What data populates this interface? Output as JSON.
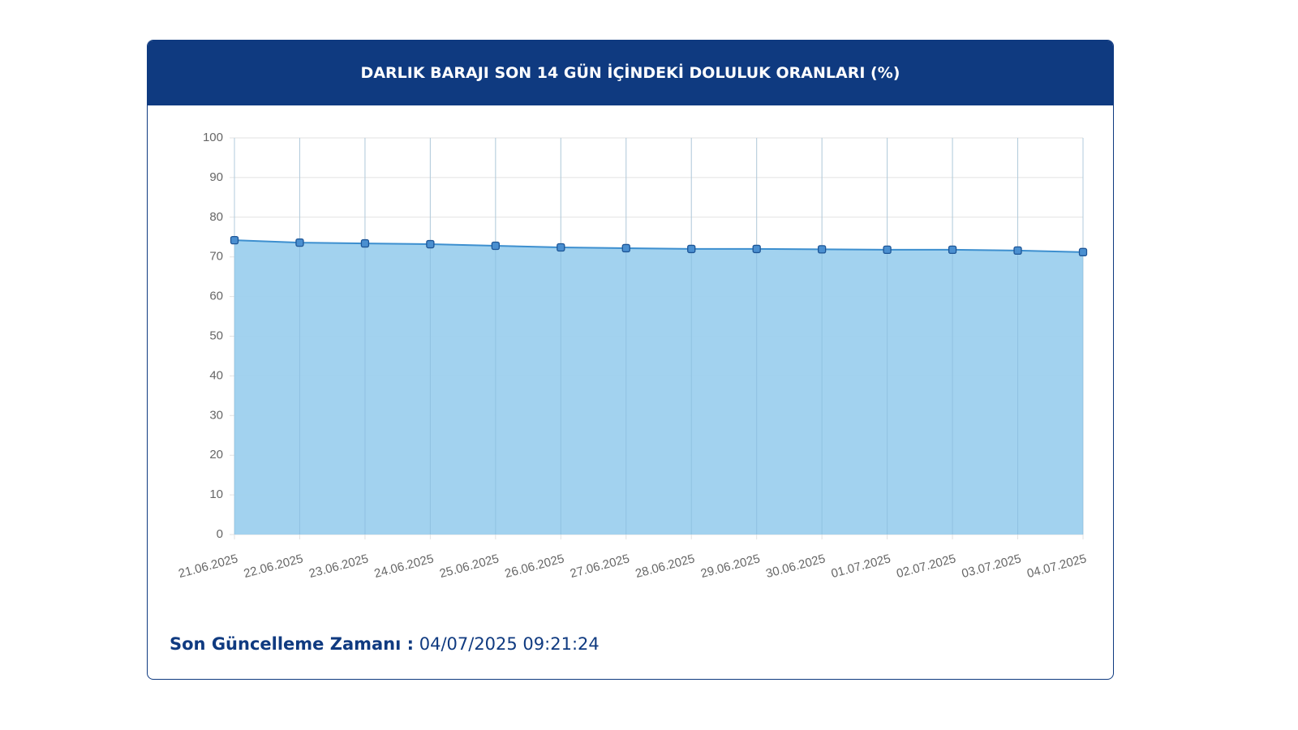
{
  "chart_data": {
    "type": "area",
    "title": "DARLIK BARAJI SON 14 GÜN İÇİNDEKİ DOLULUK ORANLARI (%)",
    "categories": [
      "21.06.2025",
      "22.06.2025",
      "23.06.2025",
      "24.06.2025",
      "25.06.2025",
      "26.06.2025",
      "27.06.2025",
      "28.06.2025",
      "29.06.2025",
      "30.06.2025",
      "01.07.2025",
      "02.07.2025",
      "03.07.2025",
      "04.07.2025"
    ],
    "values": [
      74.2,
      73.6,
      73.4,
      73.2,
      72.8,
      72.4,
      72.2,
      72.0,
      72.0,
      71.9,
      71.8,
      71.8,
      71.6,
      71.2
    ],
    "color": "#3d8fcf",
    "fill_color": "#9dd0ee",
    "marker_color": "#4a8fd0",
    "ylim": [
      0,
      100
    ],
    "yticks": [
      0,
      10,
      20,
      30,
      40,
      50,
      60,
      70,
      80,
      90,
      100
    ],
    "grid": true
  },
  "footer": {
    "label": "Son Güncelleme Zamanı :",
    "value": "04/07/2025 09:21:24"
  }
}
